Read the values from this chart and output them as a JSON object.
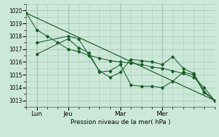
{
  "background_color": "#cce8d8",
  "grid_color": "#aaccbb",
  "line_color": "#1a5c2a",
  "ylim": [
    1012.5,
    1020.5
  ],
  "xlim": [
    0,
    36
  ],
  "xlabel": "Pression niveau de la mer( hPa )",
  "yticks": [
    1013,
    1014,
    1015,
    1016,
    1017,
    1018,
    1019,
    1020
  ],
  "xtick_positions": [
    2,
    8,
    18,
    26
  ],
  "xtick_labels": [
    "Lun",
    "Jeu",
    "Mar",
    "Mer"
  ],
  "vlines": [
    2,
    8,
    18,
    26
  ],
  "series": [
    {
      "x": [
        0,
        2,
        4,
        6,
        8,
        10,
        12,
        14,
        16,
        18,
        20,
        22,
        24,
        26,
        28,
        30,
        32,
        34,
        36
      ],
      "y": [
        1019.8,
        1018.5,
        1018.0,
        1017.5,
        1017.0,
        1016.8,
        1016.5,
        1016.3,
        1016.1,
        1016.0,
        1015.9,
        1015.8,
        1015.6,
        1015.5,
        1015.3,
        1015.1,
        1014.8,
        1014.0,
        1013.0
      ]
    },
    {
      "x": [
        2,
        8,
        10,
        12,
        14,
        16,
        18,
        20,
        22,
        24,
        26,
        28,
        30,
        32,
        34,
        36
      ],
      "y": [
        1017.5,
        1018.0,
        1017.8,
        1016.5,
        1015.3,
        1014.8,
        1015.2,
        1016.2,
        1016.1,
        1016.0,
        1015.8,
        1016.4,
        1015.5,
        1015.1,
        1013.7,
        1013.0
      ]
    },
    {
      "x": [
        2,
        8,
        10,
        12,
        14,
        16,
        18,
        20,
        22,
        24,
        26,
        28,
        30,
        32,
        34,
        36
      ],
      "y": [
        1016.6,
        1017.8,
        1017.1,
        1016.7,
        1015.2,
        1015.3,
        1015.8,
        1014.2,
        1014.1,
        1014.1,
        1014.0,
        1014.5,
        1015.2,
        1015.0,
        1013.6,
        1013.0
      ]
    },
    {
      "x": [
        0,
        36
      ],
      "y": [
        1019.8,
        1013.0
      ]
    }
  ]
}
